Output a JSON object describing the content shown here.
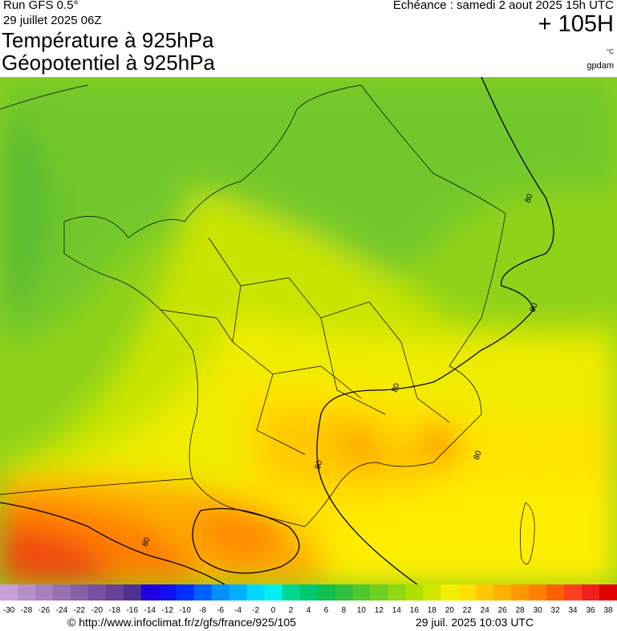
{
  "header": {
    "run": "Run GFS 0.5°",
    "run_date": "29 juillet 2025 06Z",
    "valid": "Echéance : samedi 2 aout 2025 15h UTC",
    "lead": "+ 105H",
    "title_1": "Température à 925hPa",
    "title_2": "Géopotentiel à 925hPa",
    "unit": "°C",
    "source": "gpdam"
  },
  "map": {
    "contour_labels": [
      "80",
      "80",
      "80",
      "80",
      "80",
      "80"
    ]
  },
  "colorbar": {
    "ticks": [
      -30,
      -28,
      -26,
      -24,
      -22,
      -20,
      -18,
      -16,
      -14,
      -12,
      -10,
      -8,
      -6,
      -4,
      -2,
      0,
      2,
      4,
      6,
      8,
      10,
      12,
      14,
      16,
      18,
      20,
      22,
      24,
      26,
      28,
      30,
      32,
      34,
      36,
      38
    ],
    "colors": [
      "#c8a0d8",
      "#b890c8",
      "#a880c0",
      "#9870b0",
      "#8860a8",
      "#7850a0",
      "#684098",
      "#503090",
      "#2000e0",
      "#1010f0",
      "#0030ff",
      "#0060ff",
      "#0090ff",
      "#00b0ff",
      "#00d8ff",
      "#00f0f0",
      "#00d890",
      "#00c870",
      "#10c050",
      "#30c040",
      "#50c830",
      "#70d020",
      "#90d810",
      "#b0e000",
      "#d0e800",
      "#f0f000",
      "#ffe000",
      "#ffc800",
      "#ffb000",
      "#ff9800",
      "#ff8000",
      "#ff6000",
      "#ff4020",
      "#f02020",
      "#e00000"
    ]
  },
  "footer": {
    "url": "© http://www.infoclimat.fr/z/gfs/france/925/105",
    "timestamp": "29 juil. 2025 10:03 UTC"
  }
}
